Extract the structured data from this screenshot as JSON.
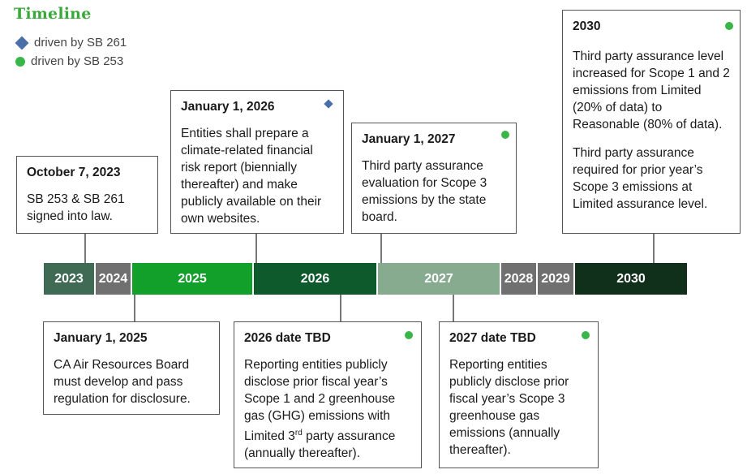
{
  "title": "Timeline",
  "legend": [
    {
      "label": "driven by SB 261",
      "marker": "diamond",
      "color": "#4a6fa8"
    },
    {
      "label": "driven by SB 253",
      "marker": "dot",
      "color": "#3ab54a"
    }
  ],
  "years": [
    {
      "label": "2023",
      "color": "#3f6b55"
    },
    {
      "label": "2024",
      "color": "#707070"
    },
    {
      "label": "2025",
      "color": "#12a02a"
    },
    {
      "label": "2026",
      "color": "#0e5a2c"
    },
    {
      "label": "2027",
      "color": "#87ab8f"
    },
    {
      "label": "2028",
      "color": "#707070"
    },
    {
      "label": "2029",
      "color": "#707070"
    },
    {
      "label": "2030",
      "color": "#11301b"
    }
  ],
  "events": {
    "oct2023": {
      "date": "October 7, 2023",
      "text": "SB 253 & SB 261 signed into law."
    },
    "jan2026": {
      "date": "January 1, 2026",
      "text": "Entities shall prepare a climate-related financial risk report (biennially thereafter) and make publicly available on their own websites."
    },
    "jan2027": {
      "date": "January 1, 2027",
      "text": "Third party assurance evaluation for Scope 3 emissions by the state board."
    },
    "y2030": {
      "date": "2030",
      "text1": "Third party assurance level increased for Scope 1 and 2 emissions from Limited (20% of data) to Reasonable (80% of data).",
      "text2": "Third party assurance required for prior year’s Scope 3 emissions at Limited assurance level."
    },
    "jan2025": {
      "date": "January 1, 2025",
      "text": "CA Air Resources Board must develop and pass regulation for disclosure."
    },
    "tbd2026": {
      "date": "2026 date TBD",
      "text_a": "Reporting entities publicly disclose prior fiscal year’s Scope 1 and 2 greenhouse gas (GHG) emissions with Limited 3",
      "sup": "rd",
      "text_b": " party assurance (annually thereafter)."
    },
    "tbd2027": {
      "date": "2027 date TBD",
      "text": "Reporting entities publicly disclose prior fiscal year’s Scope 3 greenhouse gas emissions (annually thereafter)."
    }
  }
}
